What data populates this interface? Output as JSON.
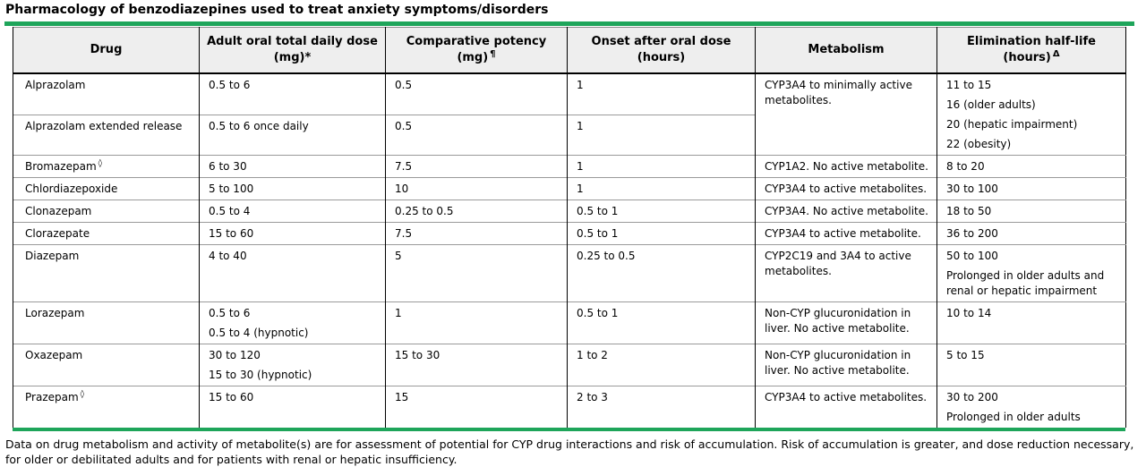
{
  "title": "Pharmacology of benzodiazepines used to treat anxiety symptoms/disorders",
  "accent_color": "#1ea55a",
  "table": {
    "headers": [
      {
        "col": "drug",
        "lines": [
          "Drug"
        ],
        "sup": ""
      },
      {
        "col": "dose",
        "lines": [
          "Adult oral total daily dose",
          "(mg)*"
        ],
        "sup": ""
      },
      {
        "col": "potency",
        "lines": [
          "Comparative potency",
          "(mg)"
        ],
        "sup": "¶"
      },
      {
        "col": "onset",
        "lines": [
          "Onset after oral dose",
          "(hours)"
        ],
        "sup": ""
      },
      {
        "col": "metabolism",
        "lines": [
          "Metabolism"
        ],
        "sup": ""
      },
      {
        "col": "half_life",
        "lines": [
          "Elimination half-life",
          "(hours)"
        ],
        "sup": "Δ"
      }
    ],
    "rows": [
      {
        "cells": [
          {
            "col": "drug",
            "lines": [
              "Alprazolam"
            ],
            "sup": ""
          },
          {
            "col": "dose",
            "lines": [
              "0.5 to 6"
            ]
          },
          {
            "col": "potency",
            "lines": [
              "0.5"
            ]
          },
          {
            "col": "onset",
            "lines": [
              "1"
            ]
          },
          {
            "col": "metabolism",
            "lines": [
              "CYP3A4 to minimally active metabolites."
            ],
            "rowspan": 2
          },
          {
            "col": "half_life",
            "lines": [
              "11 to 15",
              "16 (older adults)",
              "20 (hepatic impairment)",
              "22 (obesity)"
            ],
            "rowspan": 2
          }
        ]
      },
      {
        "cells": [
          {
            "col": "drug",
            "lines": [
              "Alprazolam extended release"
            ],
            "sup": ""
          },
          {
            "col": "dose",
            "lines": [
              "0.5 to 6 once daily"
            ]
          },
          {
            "col": "potency",
            "lines": [
              "0.5"
            ]
          },
          {
            "col": "onset",
            "lines": [
              "1"
            ]
          }
        ]
      },
      {
        "cells": [
          {
            "col": "drug",
            "lines": [
              "Bromazepam"
            ],
            "sup": "◊"
          },
          {
            "col": "dose",
            "lines": [
              "6 to 30"
            ]
          },
          {
            "col": "potency",
            "lines": [
              "7.5"
            ]
          },
          {
            "col": "onset",
            "lines": [
              "1"
            ]
          },
          {
            "col": "metabolism",
            "lines": [
              "CYP1A2. No active metabolite."
            ]
          },
          {
            "col": "half_life",
            "lines": [
              "8 to 20"
            ]
          }
        ]
      },
      {
        "cells": [
          {
            "col": "drug",
            "lines": [
              "Chlordiazepoxide"
            ],
            "sup": ""
          },
          {
            "col": "dose",
            "lines": [
              "5 to 100"
            ]
          },
          {
            "col": "potency",
            "lines": [
              "10"
            ]
          },
          {
            "col": "onset",
            "lines": [
              "1"
            ]
          },
          {
            "col": "metabolism",
            "lines": [
              "CYP3A4 to active metabolites."
            ]
          },
          {
            "col": "half_life",
            "lines": [
              "30 to 100"
            ]
          }
        ]
      },
      {
        "cells": [
          {
            "col": "drug",
            "lines": [
              "Clonazepam"
            ],
            "sup": ""
          },
          {
            "col": "dose",
            "lines": [
              "0.5 to 4"
            ]
          },
          {
            "col": "potency",
            "lines": [
              "0.25 to 0.5"
            ]
          },
          {
            "col": "onset",
            "lines": [
              "0.5 to 1"
            ]
          },
          {
            "col": "metabolism",
            "lines": [
              "CYP3A4. No active metabolite."
            ]
          },
          {
            "col": "half_life",
            "lines": [
              "18 to 50"
            ]
          }
        ]
      },
      {
        "cells": [
          {
            "col": "drug",
            "lines": [
              "Clorazepate"
            ],
            "sup": ""
          },
          {
            "col": "dose",
            "lines": [
              "15 to 60"
            ]
          },
          {
            "col": "potency",
            "lines": [
              "7.5"
            ]
          },
          {
            "col": "onset",
            "lines": [
              "0.5 to 1"
            ]
          },
          {
            "col": "metabolism",
            "lines": [
              "CYP3A4 to active metabolite."
            ]
          },
          {
            "col": "half_life",
            "lines": [
              "36 to 200"
            ]
          }
        ]
      },
      {
        "cells": [
          {
            "col": "drug",
            "lines": [
              "Diazepam"
            ],
            "sup": ""
          },
          {
            "col": "dose",
            "lines": [
              "4 to 40"
            ]
          },
          {
            "col": "potency",
            "lines": [
              "5"
            ]
          },
          {
            "col": "onset",
            "lines": [
              "0.25 to 0.5"
            ]
          },
          {
            "col": "metabolism",
            "lines": [
              "CYP2C19 and 3A4 to active metabolites."
            ]
          },
          {
            "col": "half_life",
            "lines": [
              "50 to 100",
              "Prolonged in older adults and renal or hepatic impairment"
            ]
          }
        ]
      },
      {
        "cells": [
          {
            "col": "drug",
            "lines": [
              "Lorazepam"
            ],
            "sup": ""
          },
          {
            "col": "dose",
            "lines": [
              "0.5 to 6",
              "0.5 to 4 (hypnotic)"
            ]
          },
          {
            "col": "potency",
            "lines": [
              "1"
            ]
          },
          {
            "col": "onset",
            "lines": [
              "0.5 to 1"
            ]
          },
          {
            "col": "metabolism",
            "lines": [
              "Non-CYP glucuronidation in liver. No active metabolite."
            ]
          },
          {
            "col": "half_life",
            "lines": [
              "10 to 14"
            ]
          }
        ]
      },
      {
        "cells": [
          {
            "col": "drug",
            "lines": [
              "Oxazepam"
            ],
            "sup": ""
          },
          {
            "col": "dose",
            "lines": [
              "30 to 120",
              "15 to 30 (hypnotic)"
            ]
          },
          {
            "col": "potency",
            "lines": [
              "15 to 30"
            ]
          },
          {
            "col": "onset",
            "lines": [
              "1 to 2"
            ]
          },
          {
            "col": "metabolism",
            "lines": [
              "Non-CYP glucuronidation in liver. No active metabolite."
            ]
          },
          {
            "col": "half_life",
            "lines": [
              "5 to 15"
            ]
          }
        ]
      },
      {
        "cells": [
          {
            "col": "drug",
            "lines": [
              "Prazepam"
            ],
            "sup": "◊"
          },
          {
            "col": "dose",
            "lines": [
              "15 to 60"
            ]
          },
          {
            "col": "potency",
            "lines": [
              "15"
            ]
          },
          {
            "col": "onset",
            "lines": [
              "2 to 3"
            ]
          },
          {
            "col": "metabolism",
            "lines": [
              "CYP3A4 to active metabolites."
            ]
          },
          {
            "col": "half_life",
            "lines": [
              "30 to 200",
              "Prolonged in older adults"
            ]
          }
        ]
      }
    ]
  },
  "footnote": "Data on drug metabolism and activity of metabolite(s) are for assessment of potential for CYP drug interactions and risk of accumulation. Risk of accumulation is greater, and dose reduction necessary, for older or debilitated adults and for patients with renal or hepatic insufficiency."
}
